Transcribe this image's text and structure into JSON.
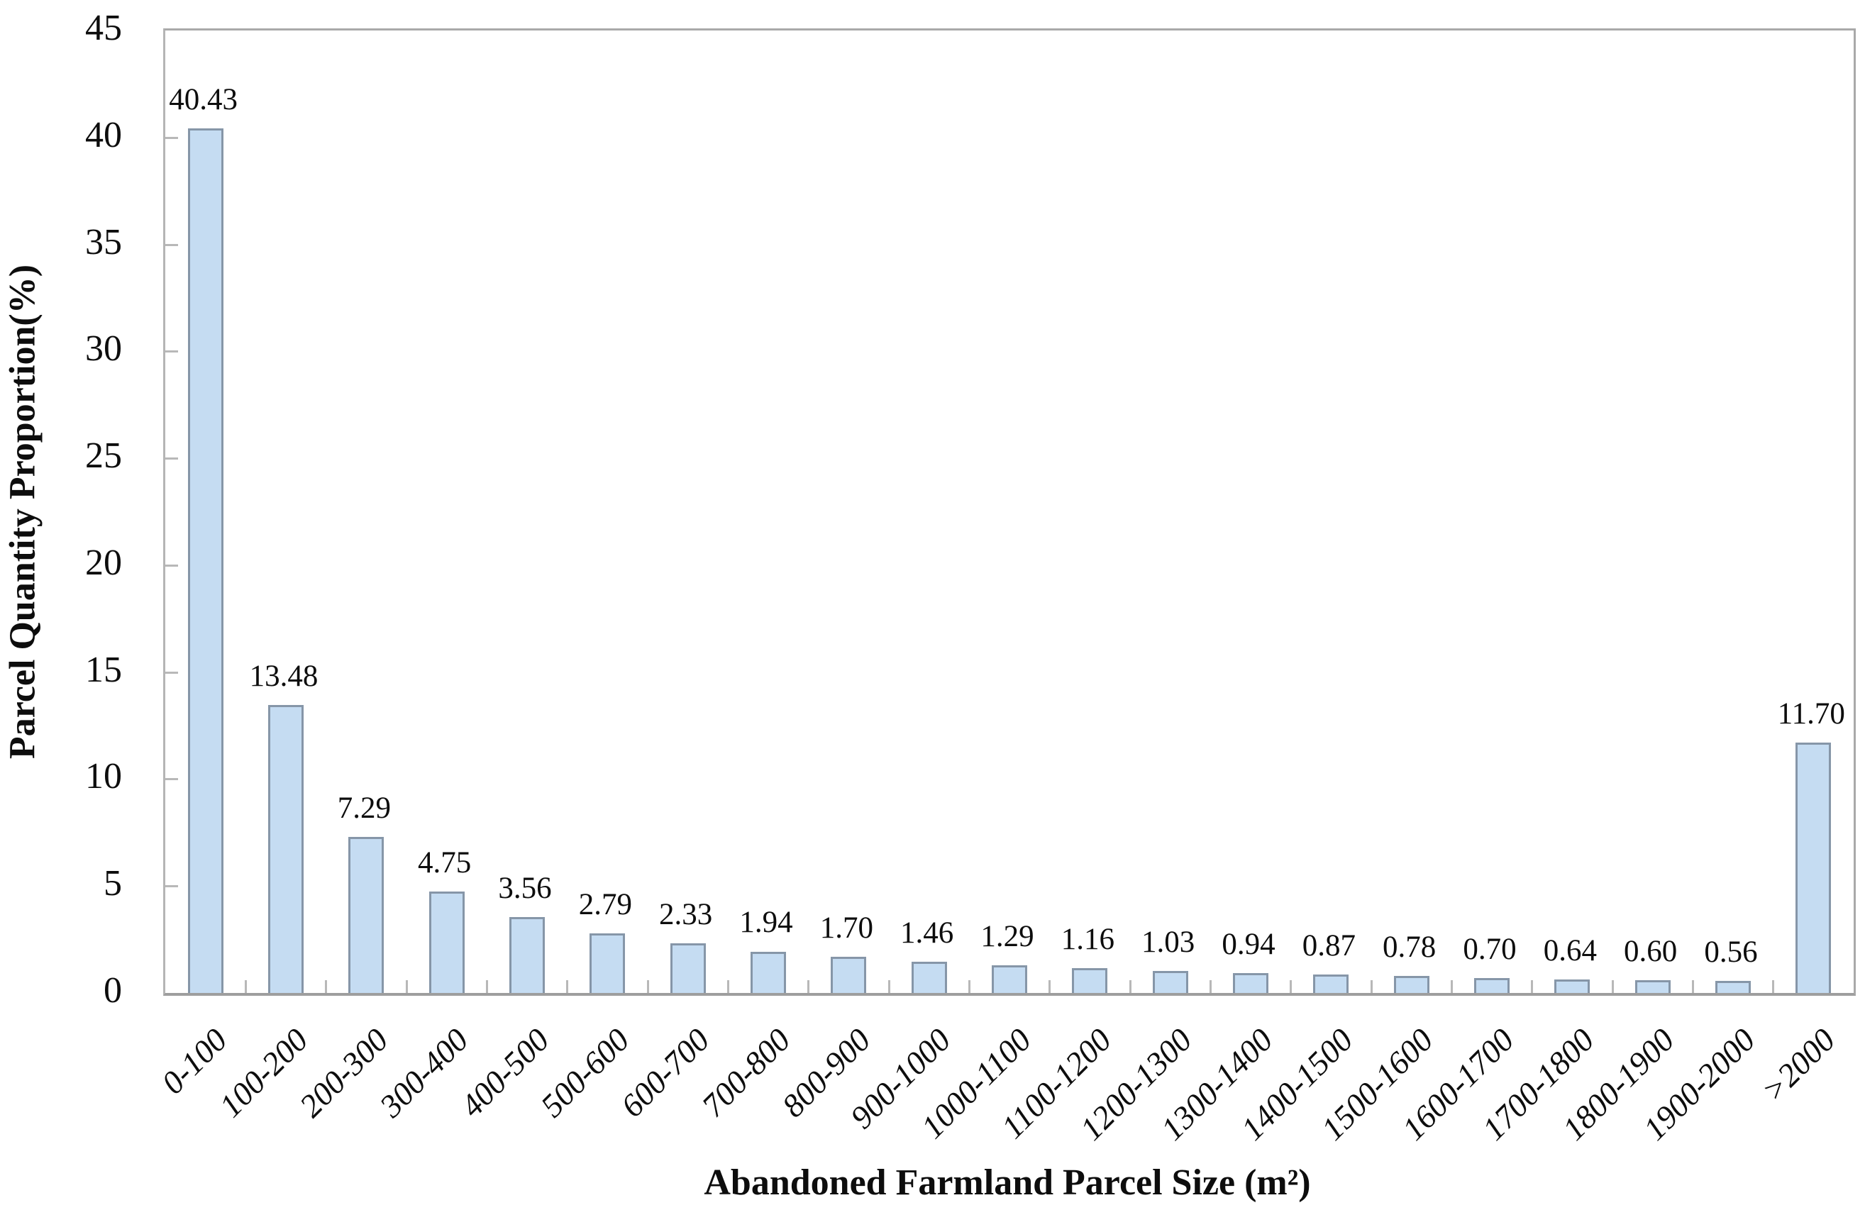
{
  "chart_data": {
    "type": "bar",
    "title": "",
    "xlabel": "Abandoned Farmland Parcel Size (m²)",
    "ylabel": "Parcel Quantity Proportion(%)",
    "categories": [
      "0-100",
      "100-200",
      "200-300",
      "300-400",
      "400-500",
      "500-600",
      "600-700",
      "700-800",
      "800-900",
      "900-1000",
      "1000-1100",
      "1100-1200",
      "1200-1300",
      "1300-1400",
      "1400-1500",
      "1500-1600",
      "1600-1700",
      "1700-1800",
      "1800-1900",
      "1900-2000",
      ">2000"
    ],
    "values": [
      40.43,
      13.48,
      7.29,
      4.75,
      3.56,
      2.79,
      2.33,
      1.94,
      1.7,
      1.46,
      1.29,
      1.16,
      1.03,
      0.94,
      0.87,
      0.78,
      0.7,
      0.64,
      0.6,
      0.56,
      11.7
    ],
    "value_label_decimals": 2,
    "ylim": [
      0,
      45
    ],
    "yticks": [
      0,
      5,
      10,
      15,
      20,
      25,
      30,
      35,
      40,
      45
    ],
    "grid": "off",
    "legend": "none",
    "bar_fill_color": "#c5dcf2",
    "bar_border_color": "#8696a8",
    "axis_color": "#a9a9a9",
    "tick_color": "#b8b8b8",
    "text_color": "#0d0d0d"
  }
}
